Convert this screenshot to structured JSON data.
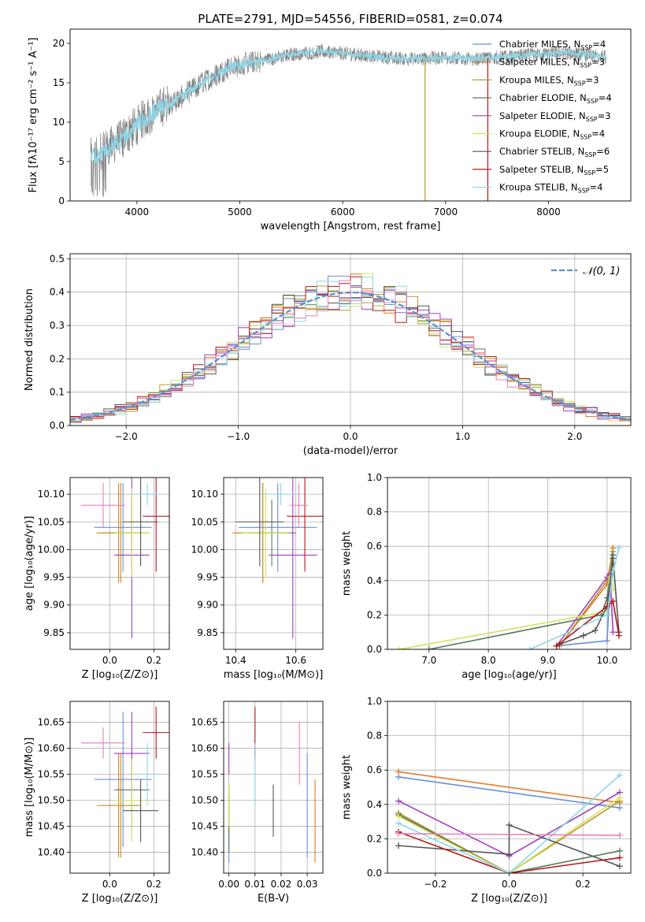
{
  "colors": {
    "Chabrier MILES": "#6a8fd8",
    "Salpeter MILES": "#e07b2a",
    "Kroupa MILES": "#b59a2a",
    "Chabrier ELODIE": "#5a7a5a",
    "Salpeter ELODIE": "#a23fbd",
    "Kroupa ELODIE": "#d6e060",
    "Chabrier STELIB": "#555555",
    "Salpeter STELIB": "#b21818",
    "Kroupa STELIB": "#8fd5e6",
    "Salpeter MILES pink": "#e87fb8"
  },
  "legend": [
    {
      "prefix": "Chabrier MILES, N",
      "sub": "SSP",
      "suffix": "=4",
      "key": "Chabrier MILES"
    },
    {
      "prefix": "Salpeter MILES, N",
      "sub": "SSP",
      "suffix": "=3",
      "key": "Salpeter MILES"
    },
    {
      "prefix": "Kroupa MILES, N",
      "sub": "SSP",
      "suffix": "=3",
      "key": "Kroupa MILES"
    },
    {
      "prefix": "Chabrier ELODIE, N",
      "sub": "SSP",
      "suffix": "=4",
      "key": "Chabrier ELODIE"
    },
    {
      "prefix": "Salpeter ELODIE, N",
      "sub": "SSP",
      "suffix": "=3",
      "key": "Salpeter ELODIE"
    },
    {
      "prefix": "Kroupa ELODIE, N",
      "sub": "SSP",
      "suffix": "=4",
      "key": "Kroupa ELODIE"
    },
    {
      "prefix": "Chabrier STELIB, N",
      "sub": "SSP",
      "suffix": "=6",
      "key": "Chabrier STELIB"
    },
    {
      "prefix": "Salpeter STELIB, N",
      "sub": "SSP",
      "suffix": "=5",
      "key": "Salpeter STELIB"
    },
    {
      "prefix": "Kroupa STELIB, N",
      "sub": "SSP",
      "suffix": "=4",
      "key": "Kroupa STELIB"
    }
  ],
  "chart_data": [
    {
      "id": "spectrum",
      "type": "line",
      "title": "PLATE=2791, MJD=54556, FIBERID=0581, z=0.074",
      "xlabel": "wavelength [Angstrom, rest frame]",
      "ylabel": "Flux [fλ10⁻¹⁷ erg cm⁻² s⁻¹ A⁻¹]",
      "xlim": [
        3350,
        8800
      ],
      "ylim": [
        0,
        21.8
      ],
      "xticks": [
        4000,
        5000,
        6000,
        7000,
        8000
      ],
      "yticks": [
        0,
        5,
        10,
        15,
        20
      ],
      "legend_position": "right",
      "continuum": {
        "x": [
          3550,
          3650,
          3750,
          3850,
          3950,
          4050,
          4150,
          4250,
          4350,
          4500,
          4700,
          4900,
          5100,
          5300,
          5500,
          5800,
          6100,
          6400,
          6700,
          7000,
          7300,
          7600,
          7900,
          8200,
          8500
        ],
        "y": [
          5.5,
          6.0,
          7.0,
          7.8,
          9.0,
          10.2,
          11.2,
          12.0,
          12.5,
          13.8,
          15.5,
          17.0,
          17.5,
          18.0,
          18.6,
          19.0,
          18.6,
          18.2,
          18.0,
          18.2,
          18.0,
          18.3,
          18.6,
          18.8,
          18.3
        ]
      },
      "vertical_lines": [
        {
          "x": 6800,
          "color": "Kroupa MILES"
        },
        {
          "x": 7410,
          "color": "Salpeter STELIB"
        }
      ]
    },
    {
      "id": "residuals",
      "type": "histogram",
      "xlabel": "(data-model)/error",
      "ylabel": "Normed distribution",
      "xlim": [
        -2.5,
        2.5
      ],
      "ylim": [
        0,
        0.515
      ],
      "xticks": [
        -2,
        -1,
        0,
        1,
        2
      ],
      "yticks": [
        0.0,
        0.1,
        0.2,
        0.3,
        0.4,
        0.5
      ],
      "grid": true,
      "bin_width": 0.1,
      "reference_label": "𝒩(0, 1)",
      "legend_position": "top-right"
    },
    {
      "id": "age_vs_Z",
      "type": "scatter",
      "xlabel": "Z [log₁₀(Z/Z⊙)]",
      "ylabel": "age  [log₁₀(age/yr)]",
      "xlim": [
        -0.18,
        0.27
      ],
      "ylim": [
        9.82,
        10.13
      ],
      "xticks": [
        0.0,
        0.2
      ],
      "yticks": [
        9.85,
        9.9,
        9.95,
        10.0,
        10.05,
        10.1
      ],
      "grid": true,
      "points": [
        {
          "key": "Chabrier MILES",
          "x": 0.06,
          "y": 10.04,
          "xerr": 0.13,
          "yerr": 0.08
        },
        {
          "key": "Salpeter MILES",
          "x": 0.04,
          "y": 10.03,
          "xerr": 0.1,
          "yerr": 0.09
        },
        {
          "key": "Kroupa MILES",
          "x": 0.05,
          "y": 10.03,
          "xerr": 0.09,
          "yerr": 0.09
        },
        {
          "key": "Chabrier ELODIE",
          "x": 0.1,
          "y": 10.03,
          "xerr": 0.08,
          "yerr": 0.06
        },
        {
          "key": "Salpeter ELODIE",
          "x": 0.1,
          "y": 9.99,
          "xerr": 0.08,
          "yerr": 0.15
        },
        {
          "key": "Kroupa ELODIE",
          "x": 0.1,
          "y": 10.03,
          "xerr": 0.08,
          "yerr": 0.08
        },
        {
          "key": "Chabrier STELIB",
          "x": 0.14,
          "y": 10.05,
          "xerr": 0.08,
          "yerr": 0.08
        },
        {
          "key": "Salpeter STELIB",
          "x": 0.21,
          "y": 10.06,
          "xerr": 0.06,
          "yerr": 0.1
        },
        {
          "key": "Kroupa STELIB",
          "x": 0.17,
          "y": 10.1,
          "xerr": 0.06,
          "yerr": 0.02
        },
        {
          "key": "Salpeter MILES pink",
          "x": -0.03,
          "y": 10.08,
          "xerr": 0.1,
          "yerr": 0.04
        }
      ]
    },
    {
      "id": "age_vs_mass",
      "type": "scatter",
      "xlabel": "mass [log₁₀(M/M⊙)]",
      "ylabel": "",
      "xlim": [
        10.36,
        10.69
      ],
      "ylim": [
        9.82,
        10.13
      ],
      "xticks": [
        10.4,
        10.6
      ],
      "yticks": [
        9.85,
        9.9,
        9.95,
        10.0,
        10.05,
        10.1
      ],
      "grid": true,
      "points": [
        {
          "key": "Chabrier MILES",
          "x": 10.54,
          "y": 10.04,
          "xerr": 0.13,
          "yerr": 0.08
        },
        {
          "key": "Salpeter MILES",
          "x": 10.49,
          "y": 10.03,
          "xerr": 0.1,
          "yerr": 0.09
        },
        {
          "key": "Kroupa MILES",
          "x": 10.49,
          "y": 10.03,
          "xerr": 0.09,
          "yerr": 0.09
        },
        {
          "key": "Chabrier ELODIE",
          "x": 10.52,
          "y": 10.03,
          "xerr": 0.08,
          "yerr": 0.06
        },
        {
          "key": "Salpeter ELODIE",
          "x": 10.59,
          "y": 9.99,
          "xerr": 0.08,
          "yerr": 0.15
        },
        {
          "key": "Kroupa ELODIE",
          "x": 10.5,
          "y": 10.03,
          "xerr": 0.08,
          "yerr": 0.08
        },
        {
          "key": "Chabrier STELIB",
          "x": 10.48,
          "y": 10.05,
          "xerr": 0.08,
          "yerr": 0.08
        },
        {
          "key": "Salpeter STELIB",
          "x": 10.63,
          "y": 10.06,
          "xerr": 0.06,
          "yerr": 0.1
        },
        {
          "key": "Kroupa STELIB",
          "x": 10.55,
          "y": 10.1,
          "xerr": 0.06,
          "yerr": 0.02
        },
        {
          "key": "Salpeter MILES pink",
          "x": 10.61,
          "y": 10.08,
          "xerr": 0.03,
          "yerr": 0.04
        }
      ]
    },
    {
      "id": "weight_vs_age",
      "type": "line",
      "xlabel": "age  [log₁₀(age/yr)]",
      "ylabel": "mass weight",
      "xlim": [
        6.3,
        10.4
      ],
      "ylim": [
        0,
        1.0
      ],
      "xticks": [
        7,
        8,
        9,
        10
      ],
      "yticks": [
        0.0,
        0.2,
        0.4,
        0.6,
        0.8,
        1.0
      ],
      "grid": true,
      "series": [
        {
          "key": "Chabrier MILES",
          "x": [
            9.15,
            10.0,
            10.05,
            10.1
          ],
          "y": [
            0.02,
            0.05,
            0.38,
            0.55
          ]
        },
        {
          "key": "Salpeter MILES",
          "x": [
            9.2,
            10.0,
            10.1
          ],
          "y": [
            0.02,
            0.38,
            0.59
          ]
        },
        {
          "key": "Kroupa MILES",
          "x": [
            9.2,
            10.0,
            10.1
          ],
          "y": [
            0.02,
            0.4,
            0.57
          ]
        },
        {
          "key": "Chabrier ELODIE",
          "x": [
            7.0,
            9.9,
            10.0,
            10.1
          ],
          "y": [
            0.0,
            0.2,
            0.3,
            0.55
          ]
        },
        {
          "key": "Salpeter ELODIE",
          "x": [
            9.15,
            10.0,
            10.05,
            10.1
          ],
          "y": [
            0.02,
            0.42,
            0.44,
            0.1
          ]
        },
        {
          "key": "Kroupa ELODIE",
          "x": [
            6.5,
            10.0,
            10.05,
            10.1
          ],
          "y": [
            0.0,
            0.22,
            0.42,
            0.35
          ]
        },
        {
          "key": "Chabrier STELIB",
          "x": [
            9.2,
            9.6,
            9.8,
            10.0,
            10.1,
            10.2
          ],
          "y": [
            0.03,
            0.08,
            0.11,
            0.25,
            0.53,
            0.1
          ]
        },
        {
          "key": "Salpeter STELIB",
          "x": [
            9.15,
            10.0,
            10.1,
            10.2
          ],
          "y": [
            0.02,
            0.25,
            0.28,
            0.08
          ]
        },
        {
          "key": "Kroupa STELIB",
          "x": [
            8.7,
            10.0,
            10.1,
            10.2
          ],
          "y": [
            0.0,
            0.2,
            0.45,
            0.59
          ]
        }
      ]
    },
    {
      "id": "mass_vs_Z",
      "type": "scatter",
      "xlabel": "Z [log₁₀(Z/Z⊙)]",
      "ylabel": "mass [log₁₀(M/M⊙)]",
      "xlim": [
        -0.18,
        0.27
      ],
      "ylim": [
        10.36,
        10.69
      ],
      "xticks": [
        0.0,
        0.2
      ],
      "yticks": [
        10.4,
        10.45,
        10.5,
        10.55,
        10.6,
        10.65
      ],
      "grid": true,
      "points": [
        {
          "key": "Chabrier MILES",
          "x": 0.06,
          "y": 10.54,
          "xerr": 0.13,
          "yerr": 0.13
        },
        {
          "key": "Salpeter MILES",
          "x": 0.04,
          "y": 10.49,
          "xerr": 0.1,
          "yerr": 0.1
        },
        {
          "key": "Kroupa MILES",
          "x": 0.05,
          "y": 10.49,
          "xerr": 0.09,
          "yerr": 0.1
        },
        {
          "key": "Chabrier ELODIE",
          "x": 0.1,
          "y": 10.52,
          "xerr": 0.08,
          "yerr": 0.08
        },
        {
          "key": "Salpeter ELODIE",
          "x": 0.1,
          "y": 10.59,
          "xerr": 0.08,
          "yerr": 0.08
        },
        {
          "key": "Kroupa ELODIE",
          "x": 0.1,
          "y": 10.5,
          "xerr": 0.08,
          "yerr": 0.08
        },
        {
          "key": "Chabrier STELIB",
          "x": 0.14,
          "y": 10.48,
          "xerr": 0.08,
          "yerr": 0.06
        },
        {
          "key": "Salpeter STELIB",
          "x": 0.21,
          "y": 10.63,
          "xerr": 0.06,
          "yerr": 0.05
        },
        {
          "key": "Kroupa STELIB",
          "x": 0.17,
          "y": 10.55,
          "xerr": 0.06,
          "yerr": 0.06
        },
        {
          "key": "Salpeter MILES pink",
          "x": -0.03,
          "y": 10.61,
          "xerr": 0.1,
          "yerr": 0.03
        }
      ]
    },
    {
      "id": "mass_vs_EBV",
      "type": "scatter",
      "xlabel": "E(B-V)",
      "ylabel": "",
      "xlim": [
        -0.002,
        0.036
      ],
      "ylim": [
        10.36,
        10.69
      ],
      "xticks": [
        0.0,
        0.01,
        0.02,
        0.03
      ],
      "yticks": [
        10.4,
        10.45,
        10.5,
        10.55,
        10.6,
        10.65
      ],
      "grid": true,
      "points": [
        {
          "key": "Chabrier MILES",
          "x": 0.0,
          "y": 10.45,
          "xerr": 0,
          "yerr": 0.07
        },
        {
          "key": "Salpeter MILES",
          "x": 0.033,
          "y": 10.46,
          "xerr": 0,
          "yerr": 0.08
        },
        {
          "key": "Kroupa MILES",
          "x": 0.0,
          "y": 10.48,
          "xerr": 0,
          "yerr": 0.05
        },
        {
          "key": "Chabrier ELODIE",
          "x": 0.0,
          "y": 10.46,
          "xerr": 0,
          "yerr": 0.06
        },
        {
          "key": "Salpeter ELODIE",
          "x": 0.0,
          "y": 10.58,
          "xerr": 0,
          "yerr": 0.03
        },
        {
          "key": "Kroupa ELODIE",
          "x": 0.0,
          "y": 10.49,
          "xerr": 0,
          "yerr": 0.04
        },
        {
          "key": "Chabrier STELIB",
          "x": 0.017,
          "y": 10.48,
          "xerr": 0,
          "yerr": 0.05
        },
        {
          "key": "Salpeter STELIB",
          "x": 0.01,
          "y": 10.63,
          "xerr": 0,
          "yerr": 0.05
        },
        {
          "key": "Kroupa STELIB",
          "x": 0.01,
          "y": 10.55,
          "xerr": 0,
          "yerr": 0.06
        },
        {
          "key": "Chabrier MILES",
          "x": 0.03,
          "y": 10.49,
          "xerr": 0,
          "yerr": 0.1
        },
        {
          "key": "Salpeter MILES pink",
          "x": 0.027,
          "y": 10.59,
          "xerr": 0,
          "yerr": 0.06
        }
      ]
    },
    {
      "id": "weight_vs_Z",
      "type": "line",
      "xlabel": "Z [log₁₀(Z/Z⊙)]",
      "ylabel": "mass weight",
      "xlim": [
        -0.33,
        0.33
      ],
      "ylim": [
        0,
        1.0
      ],
      "xticks": [
        -0.2,
        0.0,
        0.2
      ],
      "yticks": [
        0.0,
        0.2,
        0.4,
        0.6,
        0.8,
        1.0
      ],
      "grid": true,
      "series": [
        {
          "key": "Chabrier MILES",
          "x": [
            -0.3,
            0.3
          ],
          "y": [
            0.56,
            0.38
          ]
        },
        {
          "key": "Salpeter MILES",
          "x": [
            -0.3,
            0.3
          ],
          "y": [
            0.59,
            0.41
          ]
        },
        {
          "key": "Kroupa MILES",
          "x": [
            -0.3,
            0.0,
            0.3
          ],
          "y": [
            0.35,
            0.0,
            0.42
          ]
        },
        {
          "key": "Chabrier ELODIE",
          "x": [
            -0.3,
            0.0,
            0.3
          ],
          "y": [
            0.34,
            0.0,
            0.13
          ]
        },
        {
          "key": "Salpeter ELODIE",
          "x": [
            -0.3,
            0.0,
            0.3
          ],
          "y": [
            0.42,
            0.1,
            0.47
          ]
        },
        {
          "key": "Kroupa ELODIE",
          "x": [
            -0.3,
            0.0,
            0.3
          ],
          "y": [
            0.33,
            0.0,
            0.44
          ]
        },
        {
          "key": "Chabrier STELIB",
          "x": [
            -0.3,
            0.0,
            0.0,
            0.3
          ],
          "y": [
            0.16,
            0.11,
            0.28,
            0.04
          ]
        },
        {
          "key": "Salpeter STELIB",
          "x": [
            -0.3,
            0.0,
            0.3
          ],
          "y": [
            0.24,
            0.0,
            0.09
          ]
        },
        {
          "key": "Kroupa STELIB",
          "x": [
            -0.3,
            0.0,
            0.3
          ],
          "y": [
            0.29,
            0.0,
            0.57
          ]
        },
        {
          "key": "Salpeter MILES pink",
          "x": [
            -0.3,
            0.3
          ],
          "y": [
            0.23,
            0.22
          ]
        }
      ]
    }
  ]
}
